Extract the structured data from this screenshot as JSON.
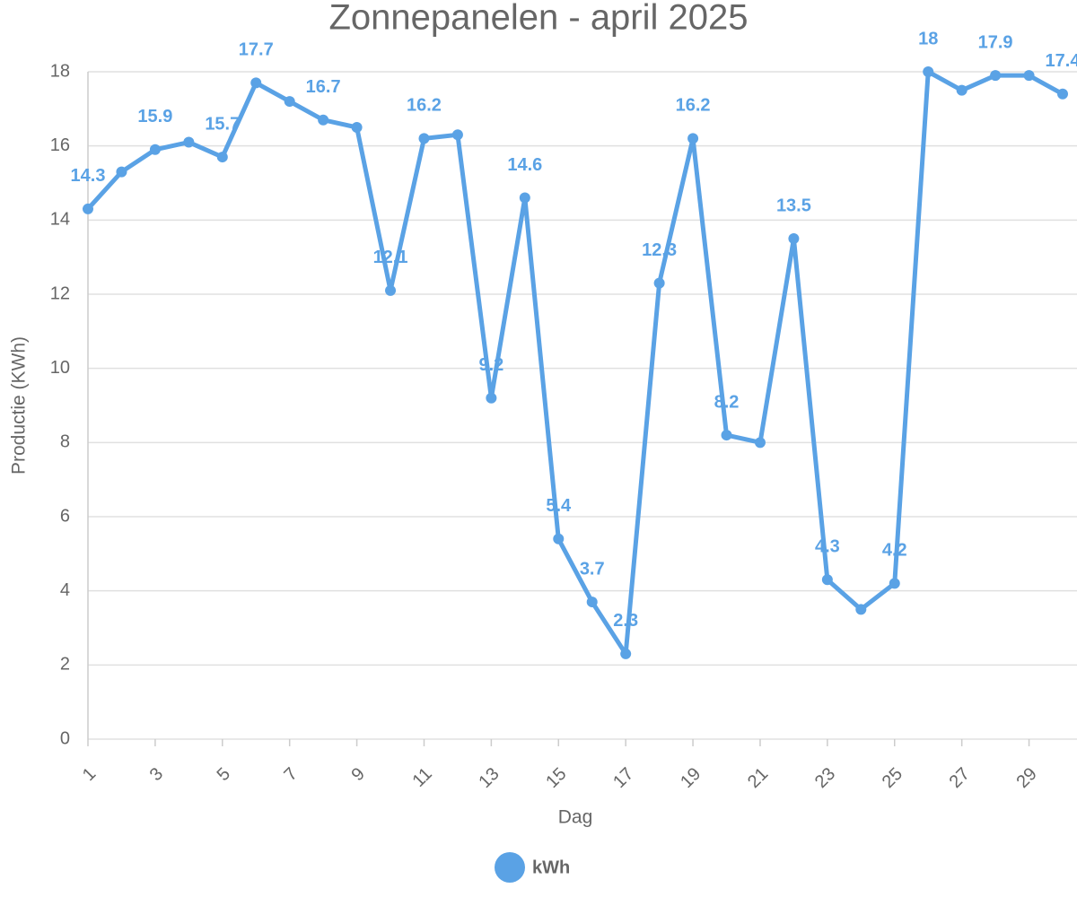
{
  "chart_data": {
    "type": "line",
    "title": "Zonnepanelen - april 2025",
    "x_label": "Dag",
    "y_label": "Productie (KWh)",
    "x": [
      1,
      2,
      3,
      4,
      5,
      6,
      7,
      8,
      9,
      10,
      11,
      12,
      13,
      14,
      15,
      16,
      17,
      18,
      19,
      20,
      21,
      22,
      23,
      24,
      25,
      26,
      27,
      28,
      29,
      30
    ],
    "xlim": [
      1,
      30
    ],
    "xticks": [
      1,
      3,
      5,
      7,
      9,
      11,
      13,
      15,
      17,
      19,
      21,
      23,
      25,
      27,
      29
    ],
    "ylim": [
      0,
      18
    ],
    "yticks": [
      0,
      2,
      4,
      6,
      8,
      10,
      12,
      14,
      16,
      18
    ],
    "grid": true,
    "legend": "bottom",
    "series": [
      {
        "name": "kWh",
        "color": "#5aa2e5",
        "values": [
          14.3,
          15.3,
          15.9,
          16.1,
          15.7,
          17.7,
          17.2,
          16.7,
          16.5,
          12.1,
          16.2,
          16.3,
          9.2,
          14.6,
          5.4,
          3.7,
          2.3,
          12.3,
          16.2,
          8.2,
          8.0,
          13.5,
          4.3,
          3.5,
          4.2,
          18,
          17.5,
          17.9,
          17.9,
          17.4
        ],
        "value_labels": [
          "14.3",
          null,
          "15.9",
          null,
          "15.7",
          "17.7",
          null,
          "16.7",
          null,
          "12.1",
          "16.2",
          null,
          "9.2",
          "14.6",
          "5.4",
          "3.7",
          "2.3",
          "12.3",
          "16.2",
          "8.2",
          null,
          "13.5",
          "4.3",
          null,
          "4.2",
          "18",
          null,
          "17.9",
          null,
          "17.4"
        ]
      }
    ]
  }
}
